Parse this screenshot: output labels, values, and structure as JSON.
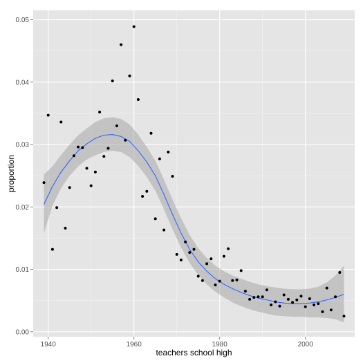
{
  "chart_data": {
    "type": "scatter",
    "title": "",
    "xlabel": "teachers school high",
    "ylabel": "proportion",
    "xlim": [
      1936.5,
      2011.5
    ],
    "ylim": [
      -0.0008,
      0.0515
    ],
    "x_ticks": [
      1940,
      1960,
      1980,
      2000
    ],
    "x_tick_labels": [
      "1940",
      "1960",
      "1980",
      "2000"
    ],
    "y_ticks": [
      0.0,
      0.01,
      0.02,
      0.03,
      0.04,
      0.05
    ],
    "y_tick_labels": [
      "0.00",
      "0.01",
      "0.02",
      "0.03",
      "0.04",
      "0.05"
    ],
    "grid": true,
    "colors": {
      "panel": "#e5e5e5",
      "grid_major": "#ffffff",
      "grid_minor": "#f2f2f2",
      "points": "#000000",
      "smooth_line": "#3366ff",
      "confidence_band": "#999999"
    },
    "points": {
      "x": [
        1939,
        1940,
        1941,
        1942,
        1943,
        1944,
        1945,
        1946,
        1947,
        1948,
        1949,
        1950,
        1951,
        1952,
        1953,
        1954,
        1955,
        1956,
        1957,
        1958,
        1959,
        1960,
        1961,
        1962,
        1963,
        1964,
        1965,
        1966,
        1967,
        1968,
        1969,
        1970,
        1971,
        1972,
        1973,
        1974,
        1975,
        1976,
        1977,
        1978,
        1979,
        1980,
        1981,
        1982,
        1983,
        1984,
        1985,
        1986,
        1987,
        1988,
        1989,
        1990,
        1991,
        1992,
        1993,
        1994,
        1995,
        1996,
        1997,
        1998,
        1999,
        2000,
        2001,
        2002,
        2003,
        2004,
        2005,
        2006,
        2007,
        2008,
        2009
      ],
      "y": [
        0.0239,
        0.0347,
        0.0132,
        0.0199,
        0.0336,
        0.0166,
        0.0231,
        0.0282,
        0.0296,
        0.0295,
        0.0262,
        0.0234,
        0.0256,
        0.0352,
        0.0281,
        0.0294,
        0.0402,
        0.033,
        0.046,
        0.0307,
        0.041,
        0.0489,
        0.0372,
        0.0217,
        0.0225,
        0.0318,
        0.0181,
        0.0277,
        0.0163,
        0.0288,
        0.0249,
        0.0124,
        0.0115,
        0.0144,
        0.0127,
        0.0132,
        0.0089,
        0.0082,
        0.0109,
        0.0117,
        0.0075,
        0.0081,
        0.0121,
        0.0133,
        0.0082,
        0.0083,
        0.0098,
        0.0065,
        0.0052,
        0.0055,
        0.0056,
        0.0056,
        0.0067,
        0.0043,
        0.0048,
        0.0041,
        0.0059,
        0.0052,
        0.0047,
        0.0051,
        0.0057,
        0.004,
        0.0053,
        0.0043,
        0.0045,
        0.0032,
        0.007,
        0.0035,
        0.0056,
        0.0095,
        0.0025
      ]
    },
    "smooth": {
      "x": [
        1939,
        1941,
        1943,
        1945,
        1947,
        1949,
        1951,
        1953,
        1955,
        1957,
        1959,
        1961,
        1963,
        1965,
        1967,
        1969,
        1971,
        1973,
        1975,
        1977,
        1979,
        1981,
        1983,
        1985,
        1987,
        1989,
        1991,
        1993,
        1995,
        1997,
        1999,
        2001,
        2003,
        2005,
        2007,
        2009
      ],
      "y": [
        0.0204,
        0.0233,
        0.0256,
        0.0274,
        0.029,
        0.0301,
        0.031,
        0.0315,
        0.0316,
        0.0313,
        0.0305,
        0.029,
        0.0272,
        0.025,
        0.022,
        0.0188,
        0.0158,
        0.0132,
        0.0112,
        0.0097,
        0.0085,
        0.0076,
        0.0069,
        0.0063,
        0.0058,
        0.0054,
        0.0051,
        0.0048,
        0.0046,
        0.0045,
        0.0045,
        0.0046,
        0.0048,
        0.0051,
        0.0055,
        0.006
      ],
      "lower": [
        0.0158,
        0.0202,
        0.023,
        0.025,
        0.0265,
        0.0276,
        0.0283,
        0.0288,
        0.029,
        0.0288,
        0.028,
        0.0266,
        0.0248,
        0.0226,
        0.0196,
        0.0164,
        0.0135,
        0.011,
        0.0091,
        0.0076,
        0.0064,
        0.0055,
        0.0047,
        0.0041,
        0.0036,
        0.0032,
        0.0029,
        0.0026,
        0.0025,
        0.0024,
        0.0024,
        0.0023,
        0.0023,
        0.0022,
        0.002,
        0.0015
      ],
      "upper": [
        0.0252,
        0.0265,
        0.0283,
        0.03,
        0.0315,
        0.0326,
        0.0336,
        0.0342,
        0.0344,
        0.0341,
        0.0332,
        0.0316,
        0.0296,
        0.0274,
        0.0244,
        0.0212,
        0.0182,
        0.0155,
        0.0134,
        0.0118,
        0.0106,
        0.0097,
        0.009,
        0.0085,
        0.008,
        0.0076,
        0.0073,
        0.0071,
        0.0069,
        0.0068,
        0.0068,
        0.0069,
        0.0072,
        0.0079,
        0.009,
        0.0106
      ]
    }
  }
}
